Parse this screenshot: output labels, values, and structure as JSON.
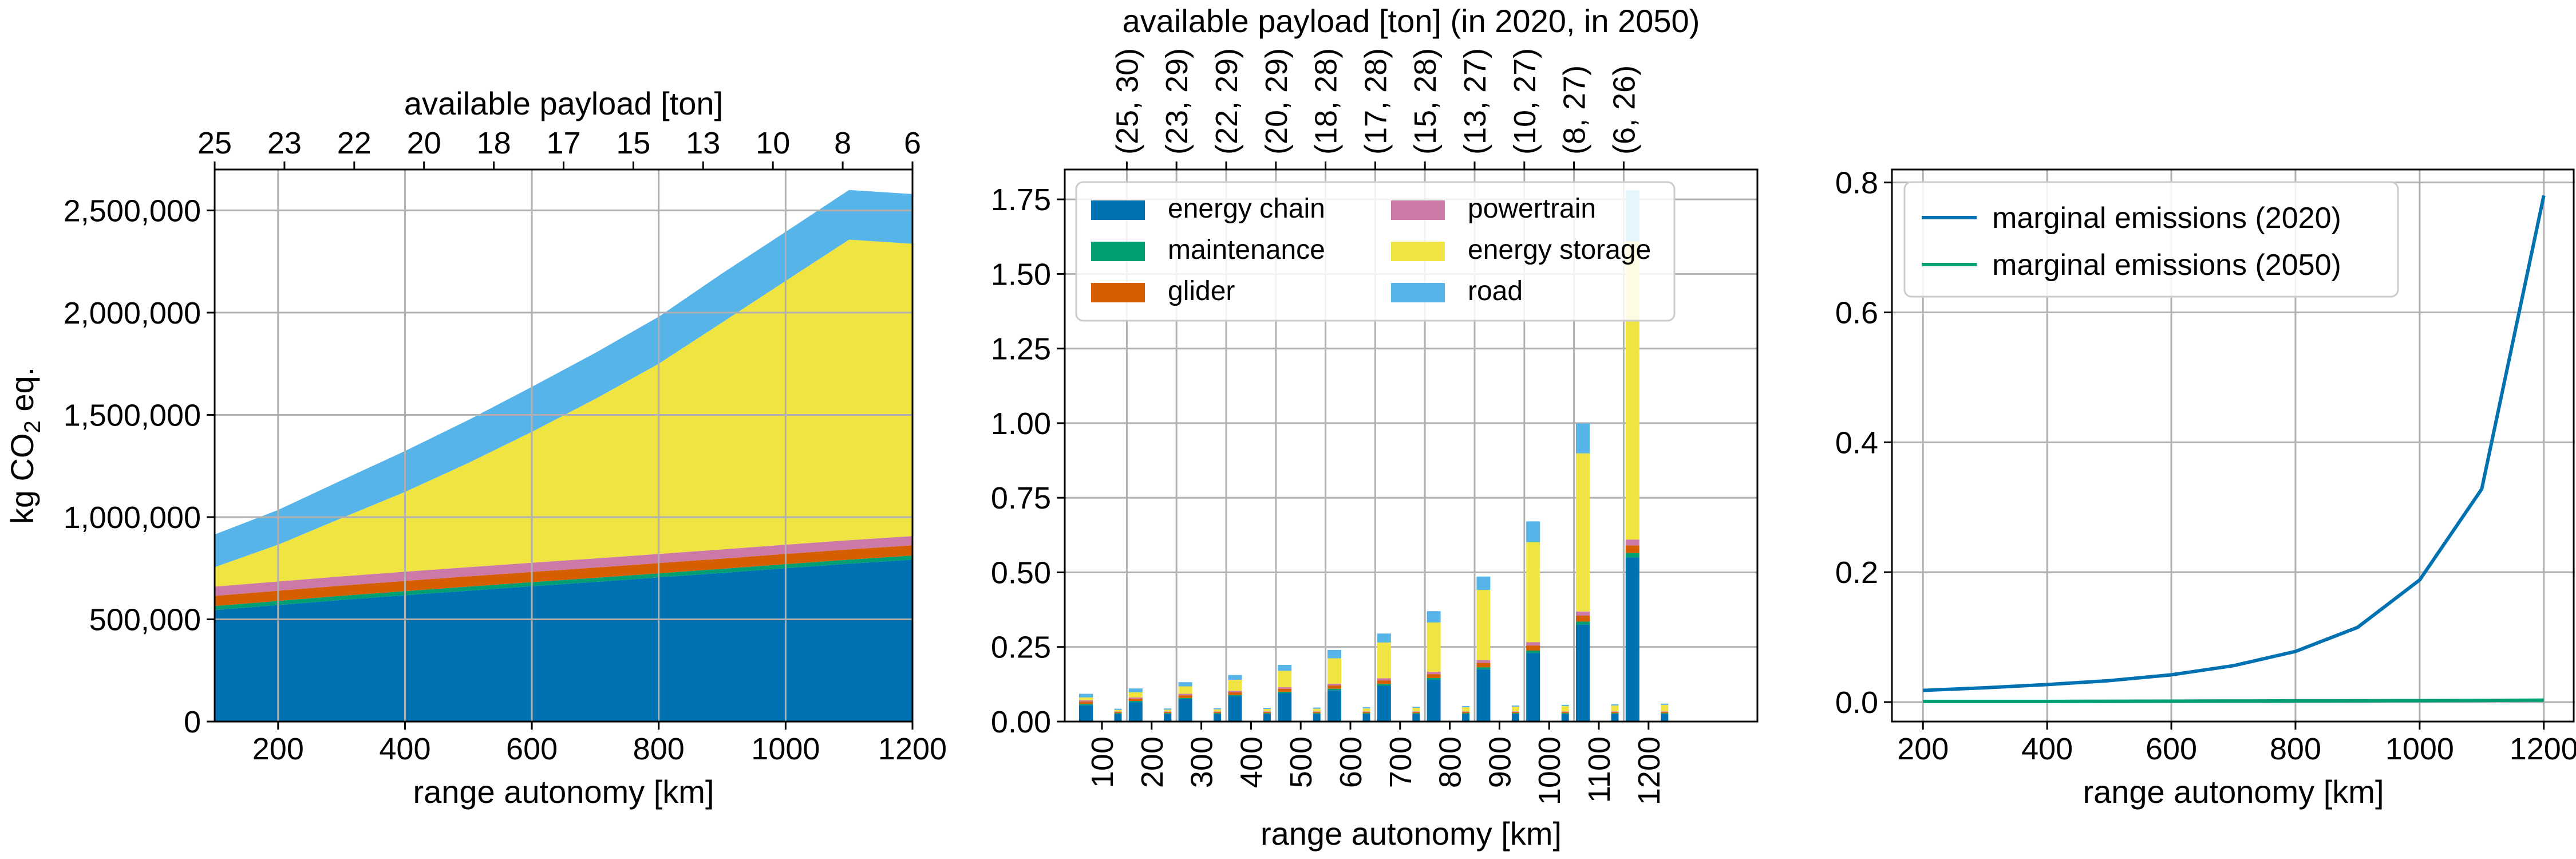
{
  "chart_data": [
    {
      "type": "area",
      "stacked": true,
      "xlabel": "range autonomy [km]",
      "ylabel_main": "kg CO",
      "ylabel_sub": "2",
      "ylabel_tail": " eq.",
      "top_xlabel": "available payload [ton]",
      "xlim": [
        100,
        1200
      ],
      "ylim": [
        0,
        2700000
      ],
      "xticks": [
        200,
        400,
        600,
        800,
        1000,
        1200
      ],
      "yticks": [
        0,
        500000,
        1000000,
        1500000,
        2000000,
        2500000
      ],
      "ytick_labels": [
        "0",
        "500,000",
        "1,000,000",
        "1,500,000",
        "2,000,000",
        "2,500,000"
      ],
      "top_ticks": [
        {
          "x": 100,
          "label": "25"
        },
        {
          "x": 210,
          "label": "23"
        },
        {
          "x": 320,
          "label": "22"
        },
        {
          "x": 430,
          "label": "20"
        },
        {
          "x": 540,
          "label": "18"
        },
        {
          "x": 650,
          "label": "17"
        },
        {
          "x": 760,
          "label": "15"
        },
        {
          "x": 870,
          "label": "13"
        },
        {
          "x": 980,
          "label": "10"
        },
        {
          "x": 1090,
          "label": "8"
        },
        {
          "x": 1200,
          "label": "6"
        }
      ],
      "grid": true,
      "x": [
        100,
        200,
        300,
        400,
        500,
        600,
        700,
        800,
        900,
        1000,
        1100,
        1200
      ],
      "series": [
        {
          "key": "energy_chain",
          "color": "#0072b2",
          "values": [
            545000,
            570000,
            595000,
            618000,
            640000,
            662000,
            683000,
            705000,
            727000,
            750000,
            772000,
            792000
          ]
        },
        {
          "key": "maintenance",
          "color": "#009e73",
          "values": [
            20000,
            20000,
            20000,
            20000,
            20000,
            20000,
            20000,
            20000,
            20000,
            20000,
            20000,
            20000
          ]
        },
        {
          "key": "glider",
          "color": "#d55e00",
          "values": [
            50000,
            50000,
            50000,
            50000,
            50000,
            50000,
            50000,
            50000,
            50000,
            50000,
            50000,
            50000
          ]
        },
        {
          "key": "powertrain",
          "color": "#cc79a7",
          "values": [
            45000,
            45000,
            45000,
            45000,
            45000,
            45000,
            45000,
            45000,
            45000,
            45000,
            45000,
            45000
          ]
        },
        {
          "key": "energy_storage",
          "color": "#f0e442",
          "values": [
            95000,
            180000,
            285000,
            390000,
            510000,
            640000,
            780000,
            930000,
            1110000,
            1290000,
            1470000,
            1430000
          ]
        },
        {
          "key": "road",
          "color": "#56b4e9",
          "values": [
            160000,
            170000,
            185000,
            200000,
            210000,
            220000,
            225000,
            230000,
            240000,
            240000,
            243000,
            243000
          ]
        }
      ]
    },
    {
      "type": "bar",
      "stacked": true,
      "xlabel": "range autonomy [km]",
      "top_xlabel": "available payload [ton] (in 2020, in 2050)",
      "ylim": [
        0,
        1.85
      ],
      "yticks": [
        0,
        0.25,
        0.5,
        0.75,
        1.0,
        1.25,
        1.5,
        1.75
      ],
      "ytick_labels": [
        "0.00",
        "0.25",
        "0.50",
        "0.75",
        "1.00",
        "1.25",
        "1.50",
        "1.75"
      ],
      "categories": [
        "100",
        "200",
        "300",
        "400",
        "500",
        "600",
        "700",
        "800",
        "900",
        "1000",
        "1100",
        "1200"
      ],
      "top_tick_labels": [
        "(25, 30)",
        "(23, 29)",
        "(22, 29)",
        "(20, 29)",
        "(18, 28)",
        "(17, 28)",
        "(15, 28)",
        "(13, 27)",
        "(10, 27)",
        "(8, 27)",
        "(6, 26)"
      ],
      "grid": true,
      "legend": {
        "position": "upper-left",
        "columns": 2
      },
      "series": [
        {
          "name": "energy chain",
          "color": "#0072b2",
          "v2020": [
            0.055,
            0.065,
            0.075,
            0.085,
            0.095,
            0.105,
            0.12,
            0.14,
            0.175,
            0.23,
            0.325,
            0.55
          ],
          "v2050": [
            0.025,
            0.025,
            0.025,
            0.025,
            0.025,
            0.025,
            0.025,
            0.025,
            0.025,
            0.025,
            0.025,
            0.025
          ]
        },
        {
          "name": "maintenance",
          "color": "#009e73",
          "v2020": [
            0.004,
            0.004,
            0.004,
            0.004,
            0.005,
            0.005,
            0.006,
            0.006,
            0.007,
            0.008,
            0.01,
            0.015
          ],
          "v2050": [
            0.003,
            0.003,
            0.003,
            0.003,
            0.003,
            0.003,
            0.003,
            0.003,
            0.003,
            0.003,
            0.003,
            0.003
          ]
        },
        {
          "name": "glider",
          "color": "#d55e00",
          "v2020": [
            0.008,
            0.008,
            0.009,
            0.009,
            0.01,
            0.011,
            0.012,
            0.013,
            0.015,
            0.017,
            0.02,
            0.025
          ],
          "v2050": [
            0.004,
            0.004,
            0.004,
            0.004,
            0.004,
            0.004,
            0.004,
            0.004,
            0.004,
            0.004,
            0.004,
            0.004
          ]
        },
        {
          "name": "powertrain",
          "color": "#cc79a7",
          "v2020": [
            0.004,
            0.004,
            0.005,
            0.005,
            0.005,
            0.006,
            0.007,
            0.008,
            0.009,
            0.011,
            0.014,
            0.02
          ],
          "v2050": [
            0.002,
            0.002,
            0.002,
            0.002,
            0.002,
            0.002,
            0.002,
            0.002,
            0.002,
            0.002,
            0.002,
            0.002
          ]
        },
        {
          "name": "energy storage",
          "color": "#f0e442",
          "v2020": [
            0.01,
            0.017,
            0.025,
            0.037,
            0.055,
            0.085,
            0.12,
            0.165,
            0.235,
            0.335,
            0.53,
            1.0
          ],
          "v2050": [
            0.005,
            0.006,
            0.007,
            0.008,
            0.009,
            0.01,
            0.012,
            0.014,
            0.016,
            0.018,
            0.02,
            0.022
          ]
        },
        {
          "name": "road",
          "color": "#56b4e9",
          "v2020": [
            0.012,
            0.013,
            0.014,
            0.016,
            0.02,
            0.028,
            0.03,
            0.038,
            0.045,
            0.07,
            0.1,
            0.17
          ],
          "v2050": [
            0.004,
            0.004,
            0.004,
            0.004,
            0.004,
            0.004,
            0.004,
            0.004,
            0.004,
            0.004,
            0.004,
            0.004
          ]
        }
      ]
    },
    {
      "type": "line",
      "xlabel": "range autonomy [km]",
      "xlim": [
        150,
        1250
      ],
      "ylim": [
        -0.03,
        0.82
      ],
      "xticks": [
        200,
        400,
        600,
        800,
        1000,
        1200
      ],
      "yticks": [
        0.0,
        0.2,
        0.4,
        0.6,
        0.8
      ],
      "ytick_labels": [
        "0.0",
        "0.2",
        "0.4",
        "0.6",
        "0.8"
      ],
      "grid": true,
      "legend": {
        "position": "upper-left"
      },
      "x": [
        200,
        300,
        400,
        500,
        600,
        700,
        800,
        900,
        1000,
        1100,
        1200
      ],
      "series": [
        {
          "name": "marginal emissions (2020)",
          "color": "#0072b2",
          "values": [
            0.018,
            0.022,
            0.027,
            0.033,
            0.042,
            0.056,
            0.078,
            0.115,
            0.188,
            0.328,
            0.78
          ]
        },
        {
          "name": "marginal emissions (2050)",
          "color": "#009e73",
          "values": [
            0.001,
            0.001,
            0.001,
            0.0012,
            0.0014,
            0.0016,
            0.0018,
            0.002,
            0.0022,
            0.0025,
            0.003
          ]
        }
      ]
    }
  ]
}
